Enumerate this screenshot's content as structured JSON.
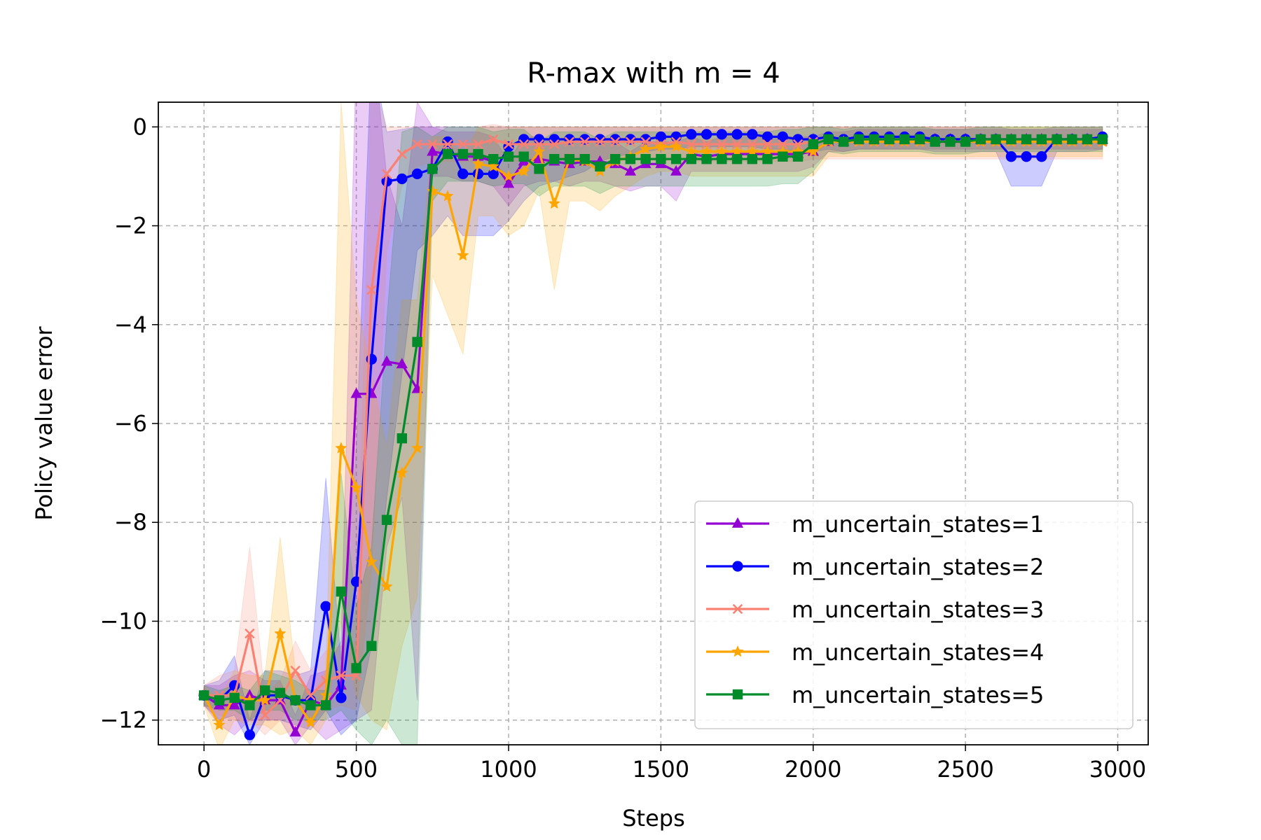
{
  "chart_data": {
    "type": "line",
    "title": "R-max with m = 4",
    "xlabel": "Steps",
    "ylabel": "Policy value error",
    "xlim": [
      -150,
      3100
    ],
    "ylim": [
      -12.5,
      0.5
    ],
    "xticks": [
      0,
      500,
      1000,
      1500,
      2000,
      2500,
      3000
    ],
    "xtick_labels": [
      "0",
      "500",
      "1000",
      "1500",
      "2000",
      "2500",
      "3000"
    ],
    "yticks": [
      0,
      -2,
      -4,
      -6,
      -8,
      -10,
      -12
    ],
    "ytick_labels": [
      "0",
      "−2",
      "−4",
      "−6",
      "−8",
      "−10",
      "−12"
    ],
    "grid": true,
    "legend_position": "lower-right",
    "x": [
      0,
      50,
      100,
      150,
      200,
      250,
      300,
      350,
      400,
      450,
      500,
      550,
      600,
      650,
      700,
      750,
      800,
      850,
      900,
      950,
      1000,
      1050,
      1100,
      1150,
      1200,
      1250,
      1300,
      1350,
      1400,
      1450,
      1500,
      1550,
      1600,
      1650,
      1700,
      1750,
      1800,
      1850,
      1900,
      1950,
      2000,
      2050,
      2100,
      2150,
      2200,
      2250,
      2300,
      2350,
      2400,
      2450,
      2500,
      2550,
      2600,
      2650,
      2700,
      2750,
      2800,
      2850,
      2900,
      2950
    ],
    "series": [
      {
        "name": "m_uncertain_states=1",
        "color": "#9400d3",
        "marker": "triangle",
        "values": [
          -11.5,
          -11.7,
          -11.7,
          -11.5,
          -11.6,
          -11.6,
          -12.25,
          -11.6,
          -11.7,
          -11.3,
          -5.4,
          -5.4,
          -4.75,
          -4.8,
          -5.3,
          -0.5,
          -0.55,
          -0.6,
          -0.6,
          -0.7,
          -1.15,
          -0.7,
          -0.65,
          -0.7,
          -0.75,
          -0.7,
          -0.7,
          -0.75,
          -0.9,
          -0.75,
          -0.75,
          -0.9,
          -0.55,
          -0.6,
          -0.55,
          -0.55,
          -0.55,
          -0.55,
          -0.55,
          -0.55,
          -0.5,
          -0.3,
          -0.3,
          -0.25,
          -0.25,
          -0.25,
          -0.25,
          -0.25,
          -0.25,
          -0.25,
          -0.25,
          -0.25,
          -0.25,
          -0.25,
          -0.25,
          -0.25,
          -0.25,
          -0.25,
          -0.25,
          -0.25
        ],
        "band_lower": [
          -11.7,
          -12.1,
          -12.3,
          -12.0,
          -12.0,
          -12.0,
          -12.5,
          -12.1,
          -12.4,
          -12.2,
          -12.0,
          -11.8,
          -8.5,
          -7.5,
          -11.6,
          -1.0,
          -1.0,
          -1.1,
          -1.1,
          -1.2,
          -1.6,
          -1.2,
          -1.1,
          -1.1,
          -1.2,
          -1.1,
          -1.1,
          -1.2,
          -1.3,
          -1.2,
          -1.2,
          -1.5,
          -0.9,
          -0.9,
          -0.9,
          -0.9,
          -0.9,
          -0.9,
          -0.9,
          -0.9,
          -0.8,
          -0.5,
          -0.5,
          -0.45,
          -0.45,
          -0.45,
          -0.45,
          -0.45,
          -0.45,
          -0.45,
          -0.45,
          -0.45,
          -0.45,
          -0.45,
          -0.45,
          -0.45,
          -0.45,
          -0.45,
          -0.45,
          -0.45
        ],
        "band_upper": [
          -11.3,
          -11.3,
          -11.1,
          -11.0,
          -11.2,
          -11.2,
          -11.9,
          -11.1,
          -11.0,
          -10.4,
          1.5,
          2.0,
          -1.0,
          -2.0,
          0.5,
          0.0,
          -0.1,
          -0.1,
          -0.1,
          -0.2,
          -0.7,
          -0.2,
          -0.2,
          -0.3,
          -0.3,
          -0.3,
          -0.3,
          -0.3,
          -0.5,
          -0.3,
          -0.3,
          -0.3,
          -0.2,
          -0.3,
          -0.2,
          -0.2,
          -0.2,
          -0.2,
          -0.2,
          -0.2,
          -0.2,
          -0.1,
          -0.1,
          -0.05,
          -0.05,
          -0.05,
          -0.05,
          -0.05,
          -0.05,
          -0.05,
          -0.05,
          -0.05,
          -0.05,
          -0.05,
          -0.05,
          -0.05,
          -0.05,
          -0.05,
          -0.05,
          -0.05
        ]
      },
      {
        "name": "m_uncertain_states=2",
        "color": "#0000ff",
        "marker": "circle",
        "values": [
          -11.5,
          -11.6,
          -11.3,
          -12.3,
          -11.5,
          -11.5,
          -11.6,
          -11.6,
          -9.7,
          -11.55,
          -9.2,
          -4.7,
          -1.1,
          -1.05,
          -0.95,
          -0.85,
          -0.3,
          -0.95,
          -0.95,
          -0.95,
          -0.4,
          -0.25,
          -0.25,
          -0.25,
          -0.25,
          -0.25,
          -0.25,
          -0.25,
          -0.25,
          -0.25,
          -0.2,
          -0.2,
          -0.15,
          -0.15,
          -0.15,
          -0.15,
          -0.15,
          -0.2,
          -0.2,
          -0.25,
          -0.25,
          -0.2,
          -0.25,
          -0.2,
          -0.2,
          -0.2,
          -0.2,
          -0.2,
          -0.25,
          -0.25,
          -0.25,
          -0.25,
          -0.25,
          -0.6,
          -0.6,
          -0.6,
          -0.25,
          -0.25,
          -0.25,
          -0.2
        ],
        "band_lower": [
          -11.7,
          -12.0,
          -11.9,
          -12.5,
          -12.0,
          -12.0,
          -12.1,
          -12.2,
          -11.8,
          -12.3,
          -12.0,
          -10.5,
          -7.5,
          -5.0,
          -2.5,
          -2.2,
          -1.8,
          -2.2,
          -2.2,
          -2.2,
          -1.9,
          -1.5,
          -1.2,
          -1.1,
          -1.0,
          -0.9,
          -0.7,
          -0.6,
          -0.55,
          -0.5,
          -0.45,
          -0.45,
          -0.4,
          -0.4,
          -0.4,
          -0.4,
          -0.4,
          -0.45,
          -0.45,
          -0.5,
          -0.5,
          -0.45,
          -0.5,
          -0.45,
          -0.45,
          -0.45,
          -0.45,
          -0.45,
          -0.5,
          -0.5,
          -0.5,
          -0.5,
          -0.5,
          -1.2,
          -1.2,
          -1.2,
          -0.5,
          -0.5,
          -0.5,
          -0.45
        ],
        "band_upper": [
          -11.3,
          -11.2,
          -10.7,
          -12.0,
          -11.0,
          -11.0,
          -11.1,
          -11.0,
          -7.1,
          -10.8,
          -6.4,
          1.5,
          -0.1,
          -0.05,
          0.0,
          0.0,
          0.0,
          0.0,
          0.0,
          0.0,
          0.0,
          0.0,
          0.0,
          0.0,
          0.0,
          0.0,
          0.0,
          0.0,
          0.0,
          0.0,
          0.0,
          0.0,
          0.0,
          0.0,
          0.0,
          0.0,
          0.0,
          0.0,
          0.0,
          0.0,
          0.0,
          0.0,
          0.0,
          0.0,
          0.0,
          0.0,
          0.0,
          0.0,
          0.0,
          0.0,
          0.0,
          0.0,
          0.0,
          -0.05,
          -0.05,
          -0.05,
          0.0,
          0.0,
          0.0,
          0.0
        ]
      },
      {
        "name": "m_uncertain_states=3",
        "color": "#fa8072",
        "marker": "x",
        "values": [
          -11.5,
          -11.5,
          -11.5,
          -10.25,
          -11.9,
          -11.6,
          -11.0,
          -11.5,
          -11.2,
          -11.1,
          -11.1,
          -3.3,
          -0.95,
          -0.55,
          -0.35,
          -0.35,
          -0.35,
          -0.35,
          -0.35,
          -0.25,
          -0.35,
          -0.35,
          -0.35,
          -0.35,
          -0.3,
          -0.3,
          -0.3,
          -0.3,
          -0.3,
          -0.3,
          -0.35,
          -0.3,
          -0.35,
          -0.35,
          -0.35,
          -0.35,
          -0.35,
          -0.35,
          -0.35,
          -0.35,
          -0.3,
          -0.3,
          -0.3,
          -0.3,
          -0.3,
          -0.3,
          -0.3,
          -0.3,
          -0.3,
          -0.3,
          -0.3,
          -0.3,
          -0.3,
          -0.3,
          -0.3,
          -0.3,
          -0.3,
          -0.3,
          -0.3,
          -0.3
        ],
        "band_lower": [
          -11.7,
          -11.9,
          -12.0,
          -12.0,
          -12.3,
          -12.0,
          -11.6,
          -12.0,
          -11.8,
          -11.7,
          -11.8,
          -9.0,
          -2.5,
          -1.2,
          -0.8,
          -0.7,
          -0.7,
          -0.7,
          -0.7,
          -0.6,
          -0.7,
          -0.7,
          -0.7,
          -0.7,
          -0.65,
          -0.65,
          -0.65,
          -0.65,
          -0.65,
          -0.65,
          -0.7,
          -0.65,
          -0.7,
          -0.7,
          -0.7,
          -0.7,
          -0.7,
          -0.7,
          -0.7,
          -0.7,
          -0.65,
          -0.65,
          -0.65,
          -0.65,
          -0.65,
          -0.65,
          -0.65,
          -0.65,
          -0.65,
          -0.65,
          -0.65,
          -0.65,
          -0.65,
          -0.65,
          -0.65,
          -0.65,
          -0.65,
          -0.65,
          -0.65,
          -0.65
        ],
        "band_upper": [
          -11.3,
          -11.1,
          -11.0,
          -8.5,
          -11.5,
          -11.2,
          -10.4,
          -11.0,
          -10.6,
          -10.5,
          -10.4,
          1.0,
          0.0,
          0.0,
          0.0,
          0.0,
          0.0,
          0.0,
          0.0,
          0.05,
          0.0,
          0.0,
          0.0,
          0.0,
          0.0,
          0.0,
          0.0,
          0.0,
          0.0,
          0.0,
          0.0,
          0.0,
          0.0,
          0.0,
          0.0,
          0.0,
          0.0,
          0.0,
          0.0,
          0.0,
          0.0,
          0.0,
          0.0,
          0.0,
          0.0,
          0.0,
          0.0,
          0.0,
          0.0,
          0.0,
          0.0,
          0.0,
          0.0,
          0.0,
          0.0,
          0.0,
          0.0,
          0.0,
          0.0,
          0.0
        ]
      },
      {
        "name": "m_uncertain_states=4",
        "color": "#ffa500",
        "marker": "star",
        "values": [
          -11.5,
          -12.1,
          -11.5,
          -11.6,
          -11.6,
          -10.25,
          -11.6,
          -12.05,
          -11.5,
          -6.5,
          -7.3,
          -8.8,
          -9.3,
          -7.0,
          -6.5,
          -1.3,
          -1.4,
          -2.6,
          -0.75,
          -0.8,
          -1.0,
          -0.9,
          -0.5,
          -1.55,
          -0.65,
          -0.7,
          -0.9,
          -0.7,
          -0.6,
          -0.45,
          -0.4,
          -0.4,
          -0.5,
          -0.5,
          -0.5,
          -0.5,
          -0.5,
          -0.5,
          -0.5,
          -0.5,
          -0.5,
          -0.3,
          -0.3,
          -0.3,
          -0.3,
          -0.3,
          -0.3,
          -0.3,
          -0.3,
          -0.3,
          -0.3,
          -0.3,
          -0.3,
          -0.3,
          -0.3,
          -0.3,
          -0.3,
          -0.3,
          -0.3,
          -0.3
        ],
        "band_lower": [
          -11.7,
          -12.6,
          -12.0,
          -12.1,
          -12.1,
          -12.3,
          -12.2,
          -12.5,
          -12.0,
          -10.0,
          -11.5,
          -12.0,
          -12.2,
          -10.5,
          -9.5,
          -3.0,
          -3.8,
          -4.6,
          -1.8,
          -1.8,
          -2.2,
          -2.0,
          -1.3,
          -3.3,
          -1.5,
          -1.5,
          -1.7,
          -1.4,
          -1.2,
          -1.0,
          -0.9,
          -0.9,
          -1.0,
          -1.0,
          -1.0,
          -1.0,
          -1.0,
          -1.0,
          -1.0,
          -1.0,
          -1.0,
          -0.6,
          -0.6,
          -0.6,
          -0.6,
          -0.6,
          -0.6,
          -0.6,
          -0.6,
          -0.6,
          -0.6,
          -0.6,
          -0.6,
          -0.6,
          -0.6,
          -0.6,
          -0.6,
          -0.6,
          -0.6,
          -0.6
        ],
        "band_upper": [
          -11.3,
          -11.6,
          -11.0,
          -11.1,
          -11.1,
          -8.3,
          -11.0,
          -11.6,
          -11.0,
          0.5,
          -3.5,
          -5.0,
          -6.5,
          -3.5,
          -3.5,
          -0.2,
          -0.2,
          -0.6,
          0.0,
          0.0,
          0.0,
          0.0,
          0.0,
          0.0,
          0.0,
          0.0,
          0.0,
          0.0,
          0.0,
          0.0,
          0.0,
          0.0,
          0.0,
          0.0,
          0.0,
          0.0,
          0.0,
          0.0,
          0.0,
          0.0,
          0.0,
          0.0,
          0.0,
          0.0,
          0.0,
          0.0,
          0.0,
          0.0,
          0.0,
          0.0,
          0.0,
          0.0,
          0.0,
          0.0,
          0.0,
          0.0,
          0.0,
          0.0,
          0.0,
          0.0
        ]
      },
      {
        "name": "m_uncertain_states=5",
        "color": "#008b2b",
        "marker": "square",
        "values": [
          -11.5,
          -11.6,
          -11.55,
          -11.7,
          -11.4,
          -11.45,
          -11.6,
          -11.7,
          -11.7,
          -9.4,
          -10.95,
          -10.5,
          -7.95,
          -6.3,
          -4.35,
          -0.85,
          -0.55,
          -0.55,
          -0.55,
          -0.65,
          -0.6,
          -0.6,
          -0.85,
          -0.65,
          -0.65,
          -0.65,
          -0.8,
          -0.65,
          -0.65,
          -0.65,
          -0.65,
          -0.65,
          -0.65,
          -0.65,
          -0.65,
          -0.65,
          -0.65,
          -0.65,
          -0.6,
          -0.6,
          -0.35,
          -0.25,
          -0.3,
          -0.25,
          -0.25,
          -0.25,
          -0.25,
          -0.25,
          -0.3,
          -0.3,
          -0.3,
          -0.25,
          -0.25,
          -0.25,
          -0.25,
          -0.25,
          -0.25,
          -0.25,
          -0.25,
          -0.25
        ],
        "band_lower": [
          -11.7,
          -11.8,
          -11.8,
          -12.0,
          -11.8,
          -11.8,
          -12.0,
          -12.0,
          -12.0,
          -11.8,
          -12.2,
          -12.5,
          -12.0,
          -12.5,
          -12.5,
          -1.5,
          -1.1,
          -1.1,
          -1.1,
          -1.2,
          -1.15,
          -1.15,
          -1.4,
          -1.2,
          -1.2,
          -1.2,
          -1.35,
          -1.2,
          -1.2,
          -1.2,
          -1.2,
          -1.2,
          -1.2,
          -1.2,
          -1.2,
          -1.2,
          -1.2,
          -1.2,
          -1.15,
          -1.15,
          -0.9,
          -0.5,
          -0.55,
          -0.5,
          -0.5,
          -0.5,
          -0.5,
          -0.5,
          -0.55,
          -0.55,
          -0.55,
          -0.5,
          -0.5,
          -0.5,
          -0.5,
          -0.5,
          -0.5,
          -0.5,
          -0.5,
          -0.5
        ],
        "band_upper": [
          -11.3,
          -11.4,
          -11.3,
          -11.4,
          -11.0,
          -11.1,
          -11.2,
          -11.4,
          -11.4,
          -7.0,
          -9.7,
          -8.5,
          -3.9,
          -0.1,
          0.0,
          -0.2,
          0.0,
          0.0,
          0.0,
          -0.1,
          -0.05,
          -0.05,
          -0.3,
          -0.1,
          -0.1,
          -0.1,
          -0.25,
          -0.1,
          -0.1,
          -0.1,
          -0.1,
          -0.1,
          -0.1,
          -0.1,
          -0.1,
          -0.1,
          -0.1,
          -0.1,
          -0.05,
          -0.05,
          0.0,
          0.0,
          -0.05,
          0.0,
          0.0,
          0.0,
          0.0,
          0.0,
          -0.05,
          -0.05,
          -0.05,
          0.0,
          0.0,
          0.0,
          0.0,
          0.0,
          0.0,
          0.0,
          0.0,
          0.0
        ]
      }
    ]
  }
}
